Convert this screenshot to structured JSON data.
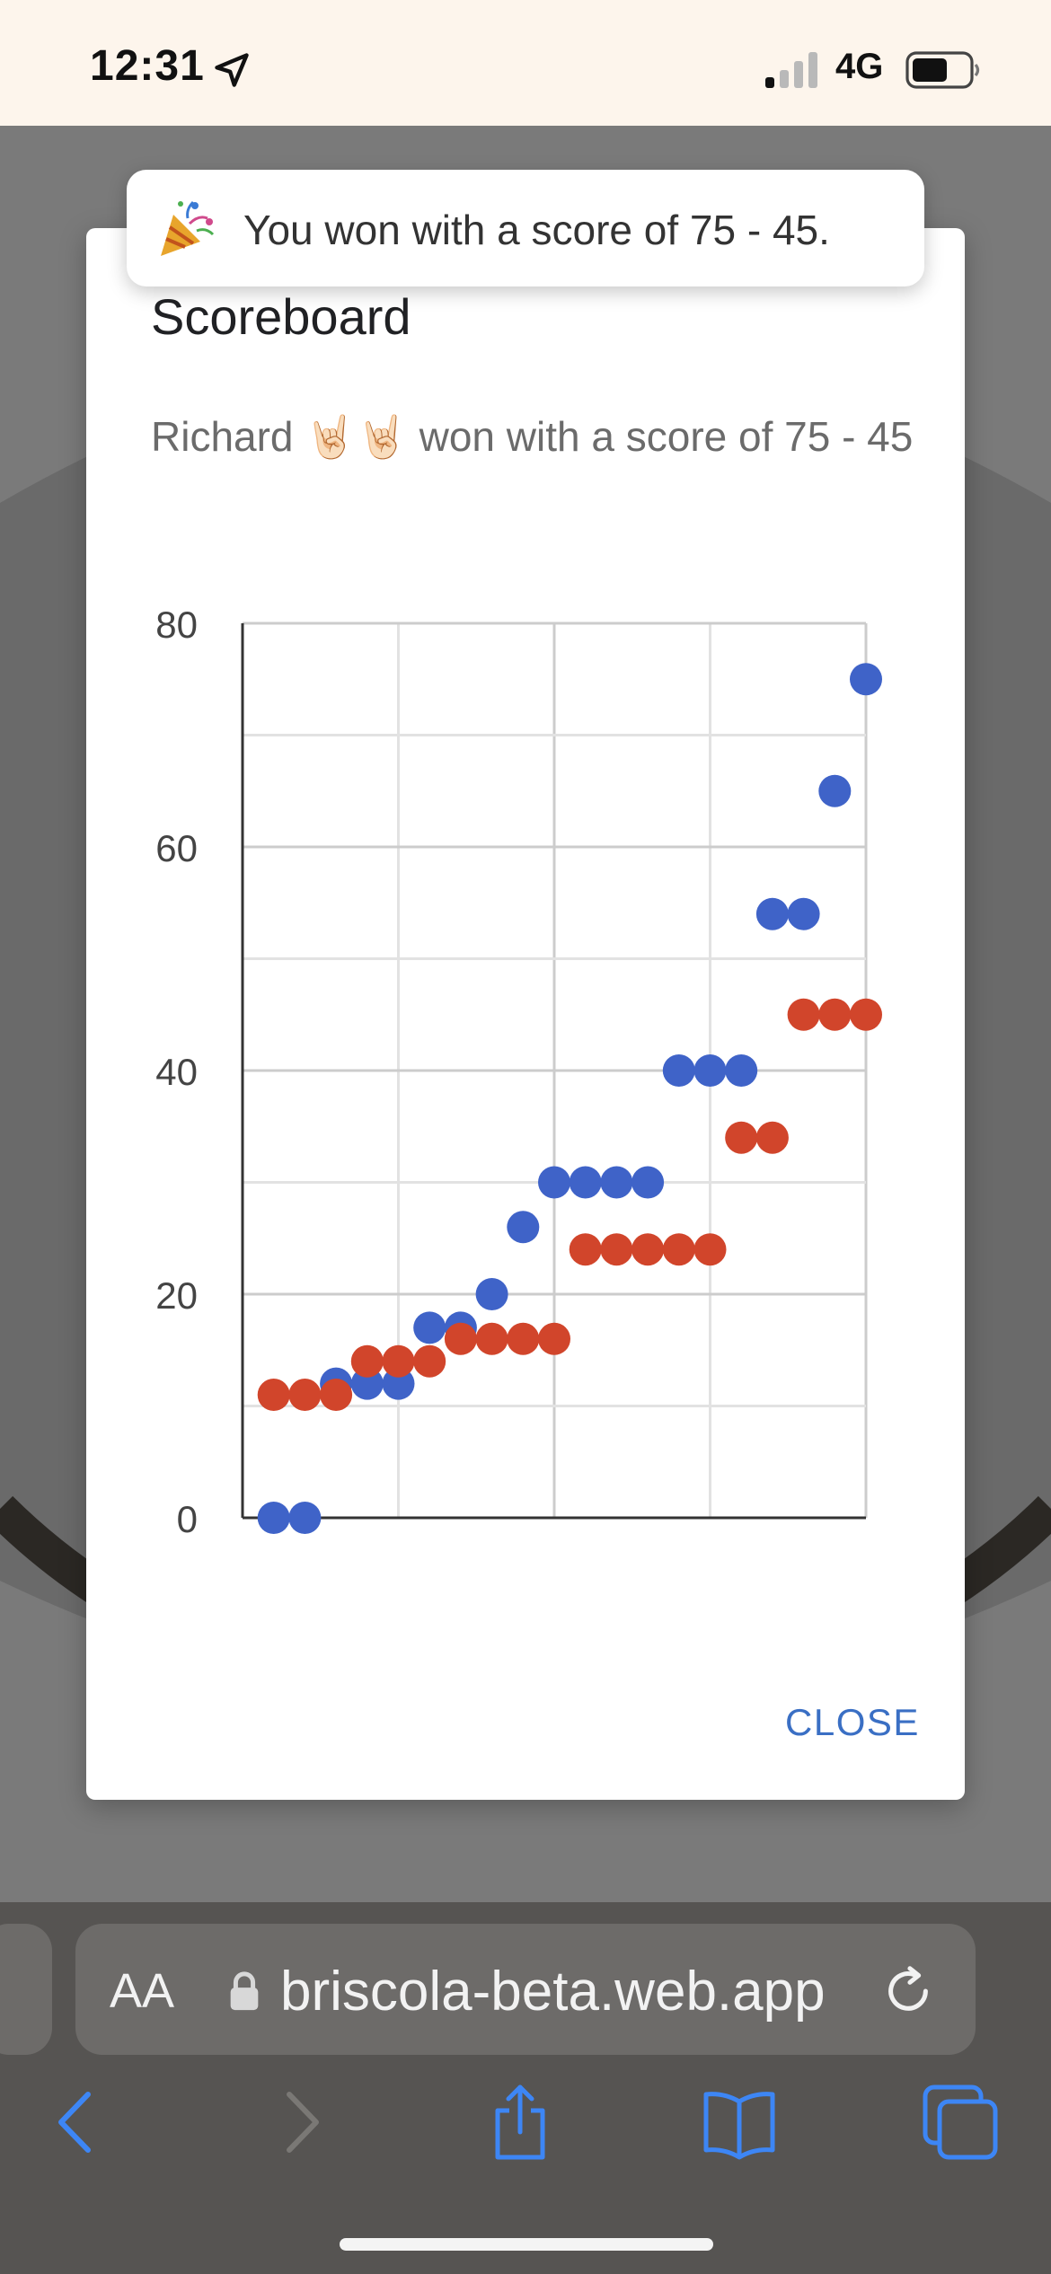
{
  "status_bar": {
    "time": "12:31",
    "network": "4G"
  },
  "toast": {
    "icon": "party-popper-icon",
    "message": "You won with a score of 75 - 45."
  },
  "dialog": {
    "title": "Scoreboard",
    "message": "Richard 🤘🏻🤘🏻 won with a score of 75 - 45",
    "close_label": "CLOSE"
  },
  "browser": {
    "text_size_label": "AA",
    "url": "briscola-beta.web.app"
  },
  "colors": {
    "series_blue": "#3f63c8",
    "series_red": "#d1452b",
    "link": "#3a6fc4"
  },
  "chart_data": {
    "type": "scatter",
    "xlim": [
      0,
      20
    ],
    "ylim": [
      0,
      80
    ],
    "x_ticks": [
      0,
      10,
      20
    ],
    "y_ticks": [
      0,
      20,
      40,
      60,
      80
    ],
    "grid": true,
    "series": [
      {
        "color": "#3f63c8",
        "points": [
          [
            1,
            0
          ],
          [
            2,
            0
          ],
          [
            3,
            12
          ],
          [
            4,
            12
          ],
          [
            5,
            12
          ],
          [
            6,
            17
          ],
          [
            7,
            17
          ],
          [
            8,
            20
          ],
          [
            9,
            26
          ],
          [
            10,
            30
          ],
          [
            11,
            30
          ],
          [
            12,
            30
          ],
          [
            13,
            30
          ],
          [
            14,
            40
          ],
          [
            15,
            40
          ],
          [
            16,
            40
          ],
          [
            17,
            54
          ],
          [
            18,
            54
          ],
          [
            19,
            65
          ],
          [
            20,
            75
          ]
        ]
      },
      {
        "color": "#d1452b",
        "points": [
          [
            1,
            11
          ],
          [
            2,
            11
          ],
          [
            3,
            11
          ],
          [
            4,
            14
          ],
          [
            5,
            14
          ],
          [
            6,
            14
          ],
          [
            7,
            16
          ],
          [
            8,
            16
          ],
          [
            9,
            16
          ],
          [
            10,
            16
          ],
          [
            11,
            24
          ],
          [
            12,
            24
          ],
          [
            13,
            24
          ],
          [
            14,
            24
          ],
          [
            15,
            24
          ],
          [
            16,
            34
          ],
          [
            17,
            34
          ],
          [
            18,
            45
          ],
          [
            19,
            45
          ],
          [
            20,
            45
          ]
        ]
      }
    ]
  }
}
